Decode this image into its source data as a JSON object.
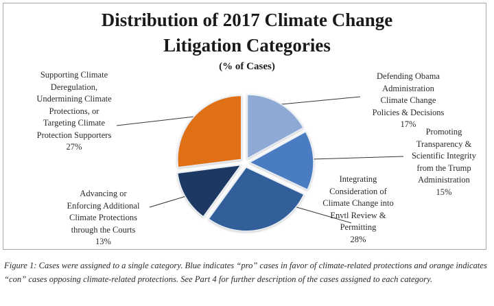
{
  "chart_data": {
    "type": "pie",
    "title": "Distribution of 2017 Climate Change Litigation Categories",
    "title_lines": [
      "Distribution of 2017 Climate Change",
      "Litigation Categories"
    ],
    "subtitle": "(% of Cases)",
    "start_angle": "12 o'clock, clockwise",
    "exploded": true,
    "slices": [
      {
        "label": "Defending Obama Administration Climate Change Policies & Decisions",
        "value": 17,
        "value_label": "17%",
        "color": "#8eaad4",
        "stance": "pro"
      },
      {
        "label": "Promoting Transparency & Scientific Integrity from the Trump Administration",
        "value": 15,
        "value_label": "15%",
        "color": "#4a7cc0",
        "stance": "pro"
      },
      {
        "label": "Integrating Consideration of Climate Change into Envtl Review & Permitting",
        "value": 28,
        "value_label": "28%",
        "color": "#335f9a",
        "stance": "pro"
      },
      {
        "label": "Advancing or Enforcing Additional Climate Protections through the Courts",
        "value": 13,
        "value_label": "13%",
        "color": "#1c3963",
        "stance": "pro"
      },
      {
        "label": "Supporting Climate Deregulation, Undermining Climate Protections, or Targeting Climate Protection Supporters",
        "value": 27,
        "value_label": "27%",
        "color": "#e06f14",
        "stance": "con"
      }
    ]
  },
  "labels": {
    "s1": "Defending Obama\nAdministration\nClimate Change\nPolicies & Decisions\n17%",
    "s2": "Promoting\nTransparency &\nScientific Integrity\nfrom the Trump\nAdministration\n15%",
    "s3": "Integrating\nConsideration of\nClimate Change into\nEnvtl Review &\nPermitting\n28%",
    "s4": "Advancing or\nEnforcing  Additional\nClimate Protections\nthrough the Courts\n13%",
    "s5": "Supporting Climate\nDeregulation,\nUndermining Climate\nProtections, or\nTargeting Climate\nProtection Supporters\n27%"
  },
  "caption": "Figure 1: Cases were assigned to a single category. Blue indicates “pro” cases in favor of climate-related protections and orange indicates “con” cases opposing climate-related protections. See Part 4 for further description of the cases assigned to each category."
}
